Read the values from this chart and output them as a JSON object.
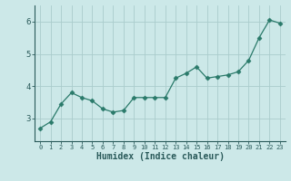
{
  "x": [
    0,
    1,
    2,
    3,
    4,
    5,
    6,
    7,
    8,
    9,
    10,
    11,
    12,
    13,
    14,
    15,
    16,
    17,
    18,
    19,
    20,
    21,
    22,
    23
  ],
  "y": [
    2.7,
    2.9,
    3.45,
    3.8,
    3.65,
    3.55,
    3.3,
    3.2,
    3.25,
    3.65,
    3.65,
    3.65,
    3.65,
    4.25,
    4.4,
    4.6,
    4.25,
    4.3,
    4.35,
    4.45,
    4.8,
    5.5,
    6.05,
    5.95
  ],
  "line_color": "#2a7a6a",
  "marker": "D",
  "marker_size": 2.5,
  "bg_color": "#cce8e8",
  "grid_color": "#aacccc",
  "tick_color": "#2a5a5a",
  "xlabel": "Humidex (Indice chaleur)",
  "xlabel_fontsize": 7,
  "xlim": [
    -0.5,
    23.5
  ],
  "ylim": [
    2.3,
    6.5
  ],
  "yticks": [
    3,
    4,
    5,
    6
  ],
  "xticks": [
    0,
    1,
    2,
    3,
    4,
    5,
    6,
    7,
    8,
    9,
    10,
    11,
    12,
    13,
    14,
    15,
    16,
    17,
    18,
    19,
    20,
    21,
    22,
    23
  ]
}
